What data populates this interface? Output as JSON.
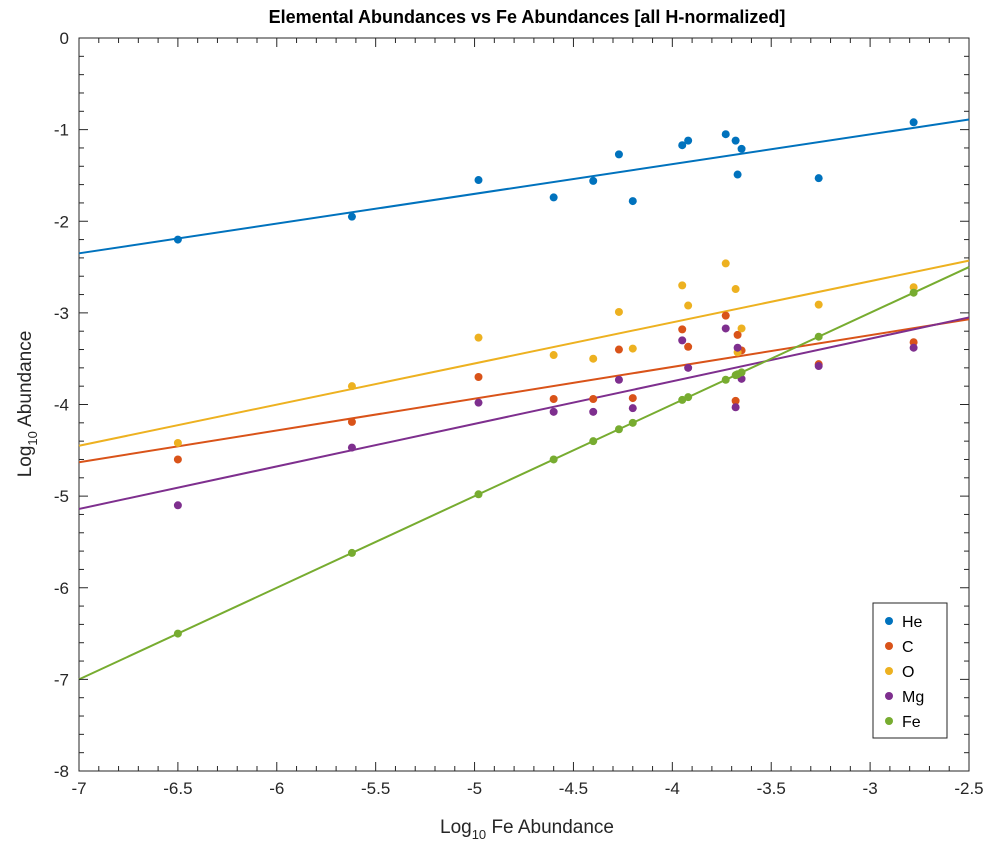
{
  "chart_data": {
    "type": "scatter",
    "title": "Elemental Abundances vs Fe Abundances [all H-normalized]",
    "xlabel": {
      "prefix": "Log",
      "sub": "10",
      "suffix": " Fe Abundance"
    },
    "ylabel": {
      "prefix": "Log",
      "sub": "10",
      "suffix": " Abundance"
    },
    "xlim": [
      -7,
      -2.5
    ],
    "ylim": [
      -8,
      0
    ],
    "xticks": [
      -7,
      -6.5,
      -6,
      -5.5,
      -5,
      -4.5,
      -4,
      -3.5,
      -3,
      -2.5
    ],
    "xtick_labels": [
      "-7",
      "-6.5",
      "-6",
      "-5.5",
      "-5",
      "-4.5",
      "-4",
      "-3.5",
      "-3",
      "-2.5"
    ],
    "yticks": [
      0,
      -1,
      -2,
      -3,
      -4,
      -5,
      -6,
      -7,
      -8
    ],
    "ytick_labels": [
      "0",
      "-1",
      "-2",
      "-3",
      "-4",
      "-5",
      "-6",
      "-7",
      "-8"
    ],
    "grid": false,
    "legend_position": "bottom-right",
    "x": [
      -6.5,
      -5.62,
      -4.98,
      -4.6,
      -4.4,
      -4.27,
      -4.2,
      -3.95,
      -3.92,
      -3.73,
      -3.68,
      -3.67,
      -3.65,
      -3.26,
      -2.78
    ],
    "series": [
      {
        "name": "He",
        "color": "#0072BD",
        "values": [
          -2.2,
          -1.95,
          -1.55,
          -1.74,
          -1.56,
          -1.27,
          -1.78,
          -1.17,
          -1.12,
          -1.05,
          -1.12,
          -1.49,
          -1.21,
          -1.53,
          -0.92
        ],
        "fit": [
          [
            -7,
            -2.35
          ],
          [
            -2.5,
            -0.89
          ]
        ]
      },
      {
        "name": "C",
        "color": "#D95319",
        "values": [
          -4.6,
          -4.19,
          -3.7,
          -3.94,
          -3.94,
          -3.4,
          -3.93,
          -3.18,
          -3.37,
          -3.03,
          -3.96,
          -3.24,
          -3.41,
          -3.56,
          -3.32
        ],
        "fit": [
          [
            -7,
            -4.63
          ],
          [
            -2.5,
            -3.07
          ]
        ]
      },
      {
        "name": "O",
        "color": "#EDB120",
        "values": [
          -4.42,
          -3.8,
          -3.27,
          -3.46,
          -3.5,
          -2.99,
          -3.39,
          -2.7,
          -2.92,
          -2.46,
          -2.74,
          -3.43,
          -3.17,
          -2.91,
          -2.72
        ],
        "fit": [
          [
            -7,
            -4.45
          ],
          [
            -2.5,
            -2.43
          ]
        ]
      },
      {
        "name": "Mg",
        "color": "#7E2F8E",
        "values": [
          -5.1,
          -4.47,
          -3.98,
          -4.08,
          -4.08,
          -3.73,
          -4.04,
          -3.3,
          -3.6,
          -3.17,
          -4.03,
          -3.38,
          -3.72,
          -3.58,
          -3.38
        ],
        "fit": [
          [
            -7,
            -5.14
          ],
          [
            -2.5,
            -3.05
          ]
        ]
      },
      {
        "name": "Fe",
        "color": "#77AC30",
        "values": [
          -6.5,
          -5.62,
          -4.98,
          -4.6,
          -4.4,
          -4.27,
          -4.2,
          -3.95,
          -3.92,
          -3.73,
          -3.68,
          -3.67,
          -3.65,
          -3.26,
          -2.78
        ],
        "fit": [
          [
            -7,
            -7.0
          ],
          [
            -2.5,
            -2.5
          ]
        ]
      }
    ]
  }
}
